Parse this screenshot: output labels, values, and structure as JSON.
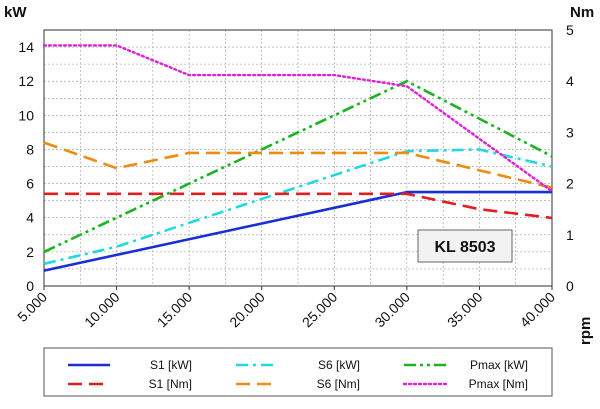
{
  "chart_data": {
    "type": "line",
    "x_label": "rpm",
    "x": [
      5000,
      10000,
      15000,
      20000,
      25000,
      30000,
      35000,
      40000
    ],
    "x_tick_labels": [
      "5.000",
      "10.000",
      "15.000",
      "20.000",
      "25.000",
      "30.000",
      "35.000",
      "40.000"
    ],
    "xlim": [
      5000,
      40000
    ],
    "y_left": {
      "label": "kW",
      "lim": [
        0,
        15
      ],
      "ticks": [
        0,
        2,
        4,
        6,
        8,
        10,
        12,
        14
      ]
    },
    "y_right": {
      "label": "Nm",
      "lim": [
        0,
        5
      ],
      "ticks": [
        0,
        1,
        2,
        3,
        4,
        5
      ]
    },
    "grid": true,
    "legend_position": "bottom",
    "annotation": "KL 8503",
    "series": [
      {
        "name": "S1 [kW]",
        "axis": "left",
        "color": "#1a2fd6",
        "dash": "solid",
        "points": [
          [
            5000,
            0.9
          ],
          [
            30000,
            5.5
          ],
          [
            40000,
            5.5
          ]
        ]
      },
      {
        "name": "S6 [kW]",
        "axis": "left",
        "color": "#22d8e0",
        "dash": "dashdot",
        "points": [
          [
            5000,
            1.3
          ],
          [
            10000,
            2.3
          ],
          [
            30000,
            7.9
          ],
          [
            35000,
            8.0
          ],
          [
            40000,
            7.0
          ]
        ]
      },
      {
        "name": "Pmax [kW]",
        "axis": "left",
        "color": "#19b41f",
        "dash": "dashdotdot",
        "points": [
          [
            5000,
            2.0
          ],
          [
            10000,
            4.0
          ],
          [
            30000,
            12.0
          ],
          [
            40000,
            7.6
          ]
        ]
      },
      {
        "name": "S1 [Nm]",
        "axis": "right",
        "color": "#e02020",
        "dash": "dash",
        "points": [
          [
            5000,
            1.8
          ],
          [
            30000,
            1.8
          ],
          [
            35000,
            1.5
          ],
          [
            40000,
            1.33
          ]
        ]
      },
      {
        "name": "S6 [Nm]",
        "axis": "right",
        "color": "#f08a10",
        "dash": "dash",
        "points": [
          [
            5000,
            2.8
          ],
          [
            10000,
            2.3
          ],
          [
            15000,
            2.6
          ],
          [
            30000,
            2.6
          ],
          [
            40000,
            1.92
          ]
        ]
      },
      {
        "name": "Pmax [Nm]",
        "axis": "right",
        "color": "#e020d8",
        "dash": "dot",
        "points": [
          [
            5000,
            4.7
          ],
          [
            10000,
            4.7
          ],
          [
            15000,
            4.12
          ],
          [
            25000,
            4.12
          ],
          [
            30000,
            3.9
          ],
          [
            40000,
            1.85
          ]
        ]
      }
    ]
  }
}
